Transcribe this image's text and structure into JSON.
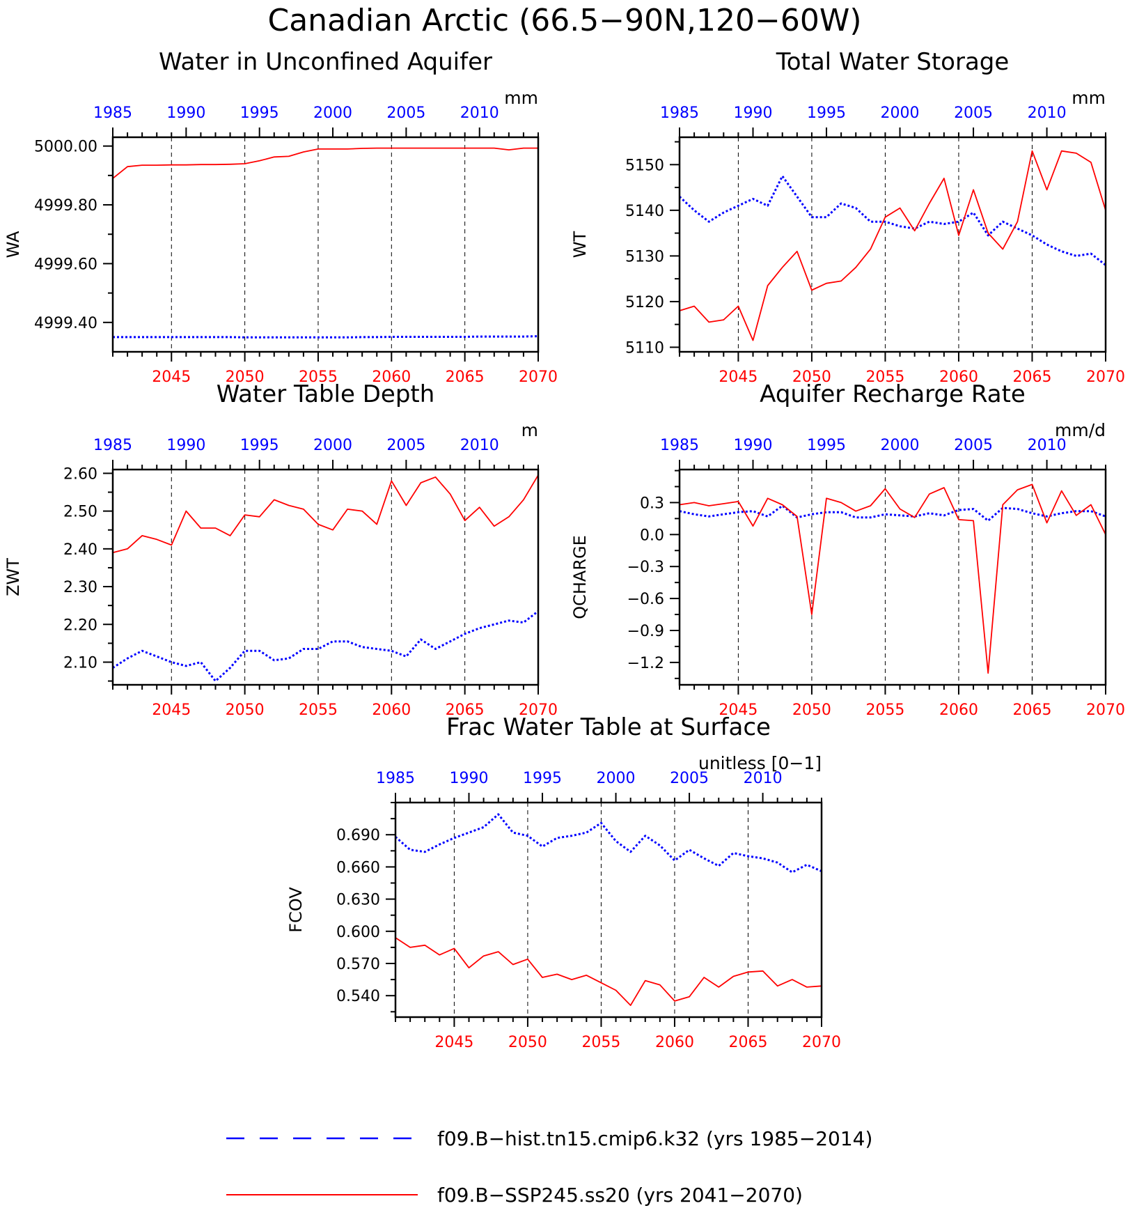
{
  "title": "Canadian Arctic (66.5−90N,120−60W)",
  "colors": {
    "hist": "#0000ff",
    "ssp": "#ff0000",
    "axis": "#000000"
  },
  "legend": [
    {
      "key": "hist",
      "label": "f09.B−hist.tn15.cmip6.k32 (yrs 1985−2014)",
      "style": "dashed"
    },
    {
      "key": "ssp",
      "label": "f09.B−SSP245.ss20 (yrs 2041−2070)",
      "style": "solid"
    }
  ],
  "chart_data": [
    {
      "type": "line",
      "title": "Water in Unconfined Aquifer",
      "ylabel": "WA",
      "units": "mm",
      "ylim": [
        4999.3,
        5000.03
      ],
      "yticks": [
        5000.0,
        4999.8,
        4999.6,
        4999.4
      ],
      "ytick_labels": [
        "5000.00",
        "4999.80",
        "4999.60",
        "4999.40"
      ],
      "x_bottom_ticks": [
        2045,
        2050,
        2055,
        2060,
        2065,
        2070
      ],
      "x_top_ticks": [
        1985,
        1990,
        1995,
        2000,
        2005,
        2010
      ],
      "xlim": [
        2041,
        2070
      ],
      "top_xlim": [
        1985,
        2014
      ],
      "grid": "dashed vertical at bottom ticks",
      "series": [
        {
          "key": "hist",
          "axis": "top",
          "x": [
            1985,
            1986,
            1987,
            1988,
            1989,
            1990,
            1991,
            1992,
            1993,
            1994,
            1995,
            1996,
            1997,
            1998,
            1999,
            2000,
            2001,
            2002,
            2003,
            2004,
            2005,
            2006,
            2007,
            2008,
            2009,
            2010,
            2011,
            2012,
            2013,
            2014
          ],
          "values": [
            4999.35,
            4999.35,
            4999.35,
            4999.35,
            4999.35,
            4999.35,
            4999.35,
            4999.35,
            4999.35,
            4999.349,
            4999.349,
            4999.349,
            4999.349,
            4999.349,
            4999.349,
            4999.349,
            4999.349,
            4999.35,
            4999.35,
            4999.351,
            4999.351,
            4999.351,
            4999.351,
            4999.351,
            4999.351,
            4999.352,
            4999.352,
            4999.352,
            4999.352,
            4999.353
          ]
        },
        {
          "key": "ssp",
          "axis": "bottom",
          "x": [
            2041,
            2042,
            2043,
            2044,
            2045,
            2046,
            2047,
            2048,
            2049,
            2050,
            2051,
            2052,
            2053,
            2054,
            2055,
            2056,
            2057,
            2058,
            2059,
            2060,
            2061,
            2062,
            2063,
            2064,
            2065,
            2066,
            2067,
            2068,
            2069,
            2070
          ],
          "values": [
            4999.89,
            4999.93,
            4999.935,
            4999.935,
            4999.936,
            4999.936,
            4999.937,
            4999.937,
            4999.938,
            4999.94,
            4999.95,
            4999.963,
            4999.965,
            4999.98,
            4999.99,
            4999.99,
            4999.99,
            4999.992,
            4999.993,
            4999.993,
            4999.993,
            4999.993,
            4999.993,
            4999.993,
            4999.993,
            4999.993,
            4999.993,
            4999.987,
            4999.993,
            4999.993
          ]
        }
      ]
    },
    {
      "type": "line",
      "title": "Total Water Storage",
      "ylabel": "WT",
      "units": "mm",
      "ylim": [
        5109,
        5156
      ],
      "yticks": [
        5150,
        5140,
        5130,
        5120,
        5110
      ],
      "ytick_labels": [
        "5150",
        "5140",
        "5130",
        "5120",
        "5110"
      ],
      "x_bottom_ticks": [
        2045,
        2050,
        2055,
        2060,
        2065,
        2070
      ],
      "x_top_ticks": [
        1985,
        1990,
        1995,
        2000,
        2005,
        2010
      ],
      "xlim": [
        2041,
        2070
      ],
      "top_xlim": [
        1985,
        2014
      ],
      "grid": "dashed vertical at bottom ticks",
      "series": [
        {
          "key": "hist",
          "axis": "top",
          "x": [
            1985,
            1986,
            1987,
            1988,
            1989,
            1990,
            1991,
            1992,
            1993,
            1994,
            1995,
            1996,
            1997,
            1998,
            1999,
            2000,
            2001,
            2002,
            2003,
            2004,
            2005,
            2006,
            2007,
            2008,
            2009,
            2010,
            2011,
            2012,
            2013,
            2014
          ],
          "values": [
            5143,
            5140,
            5137.5,
            5139.5,
            5141,
            5142.5,
            5141,
            5147.5,
            5143,
            5138.5,
            5138.5,
            5141.5,
            5140.5,
            5137.5,
            5137.5,
            5136.5,
            5136,
            5137.5,
            5137,
            5137.5,
            5139.5,
            5134.5,
            5137.5,
            5136,
            5134.5,
            5132.5,
            5131,
            5130,
            5130.5,
            5128
          ]
        },
        {
          "key": "ssp",
          "axis": "bottom",
          "x": [
            2041,
            2042,
            2043,
            2044,
            2045,
            2046,
            2047,
            2048,
            2049,
            2050,
            2051,
            2052,
            2053,
            2054,
            2055,
            2056,
            2057,
            2058,
            2059,
            2060,
            2061,
            2062,
            2063,
            2064,
            2065,
            2066,
            2067,
            2068,
            2069,
            2070
          ],
          "values": [
            5118,
            5119,
            5115.5,
            5116,
            5119,
            5111.5,
            5123.5,
            5127.5,
            5131,
            5122.5,
            5124,
            5124.5,
            5127.5,
            5131.5,
            5138.5,
            5140.5,
            5135.5,
            5141.5,
            5147,
            5134.5,
            5144.5,
            5135,
            5131.5,
            5137.5,
            5153,
            5144.5,
            5153,
            5152.5,
            5150.5,
            5140
          ]
        }
      ]
    },
    {
      "type": "line",
      "title": "Water Table Depth",
      "ylabel": "ZWT",
      "units": "m",
      "ylim": [
        2.04,
        2.61
      ],
      "yticks": [
        2.6,
        2.5,
        2.4,
        2.3,
        2.2,
        2.1
      ],
      "ytick_labels": [
        "2.60",
        "2.50",
        "2.40",
        "2.30",
        "2.20",
        "2.10"
      ],
      "x_bottom_ticks": [
        2045,
        2050,
        2055,
        2060,
        2065,
        2070
      ],
      "x_top_ticks": [
        1985,
        1990,
        1995,
        2000,
        2005,
        2010
      ],
      "xlim": [
        2041,
        2070
      ],
      "top_xlim": [
        1985,
        2014
      ],
      "grid": "dashed vertical at bottom ticks",
      "series": [
        {
          "key": "hist",
          "axis": "top",
          "x": [
            1985,
            1986,
            1987,
            1988,
            1989,
            1990,
            1991,
            1992,
            1993,
            1994,
            1995,
            1996,
            1997,
            1998,
            1999,
            2000,
            2001,
            2002,
            2003,
            2004,
            2005,
            2006,
            2007,
            2008,
            2009,
            2010,
            2011,
            2012,
            2013,
            2014
          ],
          "values": [
            2.085,
            2.11,
            2.13,
            2.115,
            2.1,
            2.09,
            2.1,
            2.05,
            2.085,
            2.13,
            2.13,
            2.105,
            2.11,
            2.135,
            2.135,
            2.155,
            2.155,
            2.14,
            2.135,
            2.13,
            2.115,
            2.16,
            2.135,
            2.155,
            2.175,
            2.19,
            2.2,
            2.21,
            2.205,
            2.235
          ]
        },
        {
          "key": "ssp",
          "axis": "bottom",
          "x": [
            2041,
            2042,
            2043,
            2044,
            2045,
            2046,
            2047,
            2048,
            2049,
            2050,
            2051,
            2052,
            2053,
            2054,
            2055,
            2056,
            2057,
            2058,
            2059,
            2060,
            2061,
            2062,
            2063,
            2064,
            2065,
            2066,
            2067,
            2068,
            2069,
            2070
          ],
          "values": [
            2.39,
            2.4,
            2.435,
            2.425,
            2.41,
            2.5,
            2.455,
            2.455,
            2.435,
            2.49,
            2.485,
            2.53,
            2.515,
            2.505,
            2.465,
            2.45,
            2.505,
            2.5,
            2.465,
            2.58,
            2.515,
            2.575,
            2.59,
            2.545,
            2.475,
            2.51,
            2.46,
            2.485,
            2.53,
            2.595
          ]
        }
      ]
    },
    {
      "type": "line",
      "title": "Aquifer Recharge Rate",
      "ylabel": "QCHARGE",
      "units": "mm/d",
      "ylim": [
        -1.41,
        0.61
      ],
      "yticks": [
        0.3,
        0.0,
        -0.3,
        -0.6,
        -0.9,
        -1.2
      ],
      "ytick_labels": [
        "0.3",
        "0.0",
        "−0.3",
        "−0.6",
        "−0.9",
        "−1.2"
      ],
      "x_bottom_ticks": [
        2045,
        2050,
        2055,
        2060,
        2065,
        2070
      ],
      "x_top_ticks": [
        1985,
        1990,
        1995,
        2000,
        2005,
        2010
      ],
      "xlim": [
        2041,
        2070
      ],
      "top_xlim": [
        1985,
        2014
      ],
      "grid": "dashed vertical at bottom ticks",
      "series": [
        {
          "key": "hist",
          "axis": "top",
          "x": [
            1985,
            1986,
            1987,
            1988,
            1989,
            1990,
            1991,
            1992,
            1993,
            1994,
            1995,
            1996,
            1997,
            1998,
            1999,
            2000,
            2001,
            2002,
            2003,
            2004,
            2005,
            2006,
            2007,
            2008,
            2009,
            2010,
            2011,
            2012,
            2013,
            2014
          ],
          "values": [
            0.22,
            0.19,
            0.17,
            0.19,
            0.21,
            0.22,
            0.17,
            0.27,
            0.16,
            0.19,
            0.21,
            0.21,
            0.16,
            0.16,
            0.19,
            0.18,
            0.17,
            0.2,
            0.18,
            0.23,
            0.24,
            0.13,
            0.25,
            0.24,
            0.2,
            0.17,
            0.2,
            0.22,
            0.22,
            0.17
          ]
        },
        {
          "key": "ssp",
          "axis": "bottom",
          "x": [
            2041,
            2042,
            2043,
            2044,
            2045,
            2046,
            2047,
            2048,
            2049,
            2050,
            2051,
            2052,
            2053,
            2054,
            2055,
            2056,
            2057,
            2058,
            2059,
            2060,
            2061,
            2062,
            2063,
            2064,
            2065,
            2066,
            2067,
            2068,
            2069,
            2070
          ],
          "values": [
            0.28,
            0.3,
            0.27,
            0.29,
            0.31,
            0.08,
            0.34,
            0.28,
            0.17,
            -0.75,
            0.34,
            0.3,
            0.22,
            0.27,
            0.43,
            0.24,
            0.16,
            0.38,
            0.44,
            0.14,
            0.13,
            -1.3,
            0.28,
            0.42,
            0.47,
            0.11,
            0.41,
            0.18,
            0.28,
            0.0
          ]
        }
      ]
    },
    {
      "type": "line",
      "title": "Frac Water Table at Surface",
      "ylabel": "FCOV",
      "units": "unitless [0−1]",
      "ylim": [
        0.52,
        0.72
      ],
      "yticks": [
        0.69,
        0.66,
        0.63,
        0.6,
        0.57,
        0.54
      ],
      "ytick_labels": [
        "0.690",
        "0.660",
        "0.630",
        "0.600",
        "0.570",
        "0.540"
      ],
      "x_bottom_ticks": [
        2045,
        2050,
        2055,
        2060,
        2065,
        2070
      ],
      "x_top_ticks": [
        1985,
        1990,
        1995,
        2000,
        2005,
        2010
      ],
      "xlim": [
        2041,
        2070
      ],
      "top_xlim": [
        1985,
        2014
      ],
      "grid": "dashed vertical at bottom ticks",
      "series": [
        {
          "key": "hist",
          "axis": "top",
          "x": [
            1985,
            1986,
            1987,
            1988,
            1989,
            1990,
            1991,
            1992,
            1993,
            1994,
            1995,
            1996,
            1997,
            1998,
            1999,
            2000,
            2001,
            2002,
            2003,
            2004,
            2005,
            2006,
            2007,
            2008,
            2009,
            2010,
            2011,
            2012,
            2013,
            2014
          ],
          "values": [
            0.688,
            0.676,
            0.674,
            0.681,
            0.687,
            0.692,
            0.697,
            0.709,
            0.692,
            0.689,
            0.679,
            0.687,
            0.689,
            0.692,
            0.701,
            0.684,
            0.674,
            0.689,
            0.68,
            0.666,
            0.676,
            0.668,
            0.661,
            0.673,
            0.67,
            0.668,
            0.664,
            0.655,
            0.662,
            0.656
          ]
        },
        {
          "key": "ssp",
          "axis": "bottom",
          "x": [
            2041,
            2042,
            2043,
            2044,
            2045,
            2046,
            2047,
            2048,
            2049,
            2050,
            2051,
            2052,
            2053,
            2054,
            2055,
            2056,
            2057,
            2058,
            2059,
            2060,
            2061,
            2062,
            2063,
            2064,
            2065,
            2066,
            2067,
            2068,
            2069,
            2070
          ],
          "values": [
            0.594,
            0.585,
            0.587,
            0.578,
            0.584,
            0.566,
            0.577,
            0.581,
            0.569,
            0.574,
            0.557,
            0.56,
            0.555,
            0.559,
            0.552,
            0.545,
            0.531,
            0.554,
            0.55,
            0.535,
            0.539,
            0.557,
            0.548,
            0.558,
            0.562,
            0.563,
            0.549,
            0.555,
            0.548,
            0.549
          ]
        }
      ]
    }
  ]
}
